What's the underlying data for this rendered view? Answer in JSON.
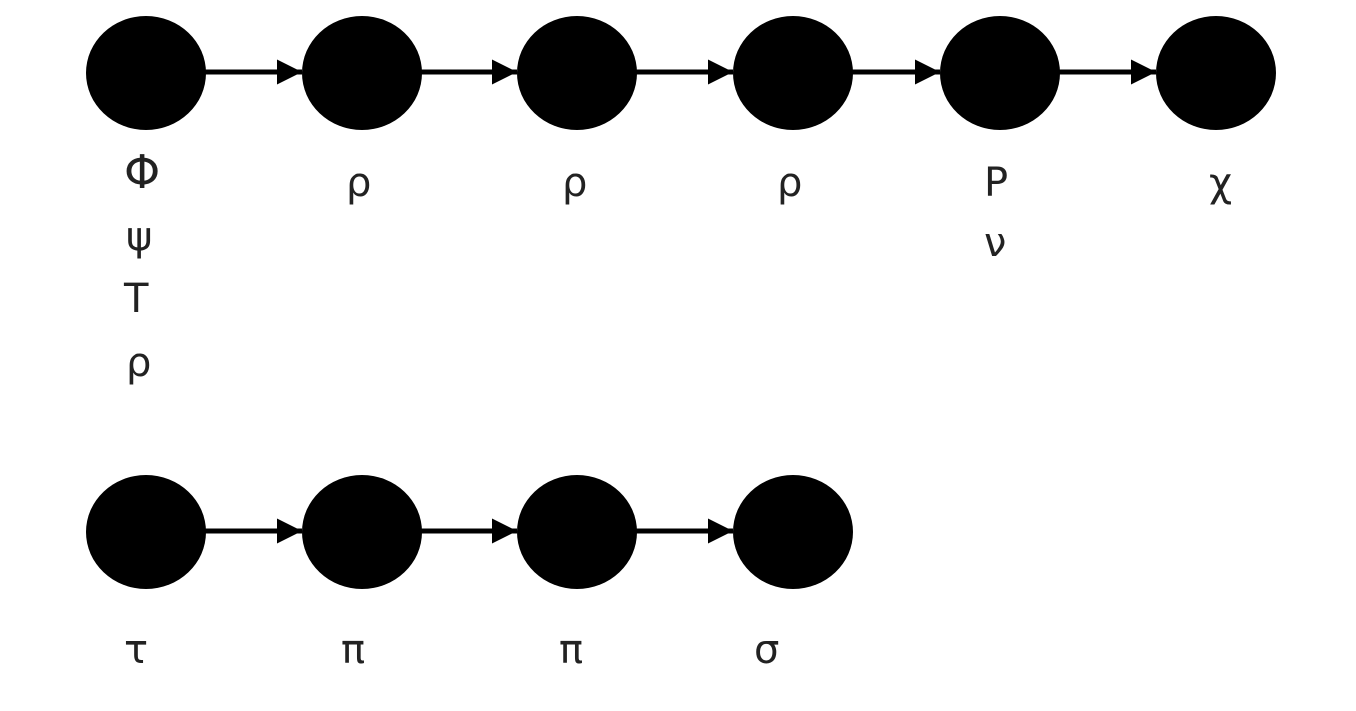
{
  "diagram": {
    "colors": {
      "node_fill": "#000000",
      "edge": "#000000",
      "text": "#222222",
      "background": "#ffffff"
    },
    "rows": [
      {
        "nodes": [
          {
            "labels": [
              "Φ",
              "ψ",
              "T",
              "ρ"
            ]
          },
          {
            "labels": [
              "ρ"
            ]
          },
          {
            "labels": [
              "ρ"
            ]
          },
          {
            "labels": [
              "ρ"
            ]
          },
          {
            "labels": [
              "P",
              "ν"
            ]
          },
          {
            "labels": [
              "χ"
            ]
          }
        ]
      },
      {
        "nodes": [
          {
            "labels": [
              "τ"
            ]
          },
          {
            "labels": [
              "π"
            ]
          },
          {
            "labels": [
              "π"
            ]
          },
          {
            "labels": [
              "σ"
            ]
          }
        ]
      }
    ]
  }
}
